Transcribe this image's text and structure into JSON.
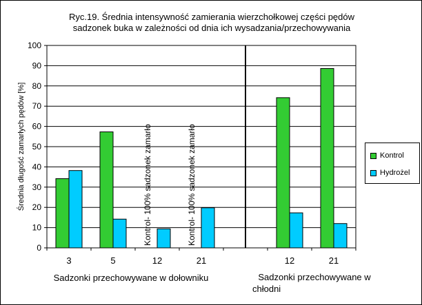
{
  "chart_data": {
    "type": "bar",
    "title_line1": "Ryc.19. Średnia intensywność zamierania wierzchołkowej części pędów",
    "title_line2": "sadzonek buka w zależności od dnia ich wysadzania/przechowywania",
    "ylabel": "Średnia długość zamarłych pędów [%]",
    "ylim": [
      0,
      100
    ],
    "yticks": [
      "0",
      "10",
      "20",
      "30",
      "40",
      "50",
      "60",
      "70",
      "80",
      "90",
      "100"
    ],
    "grid": true,
    "legend_position": "right",
    "categories": [
      "3",
      "5",
      "12",
      "21",
      "",
      "12",
      "21"
    ],
    "series": [
      {
        "name": "Kontrol",
        "color": "#33cc33",
        "values": [
          34.2,
          57.3,
          null,
          null,
          null,
          74.2,
          88.6
        ]
      },
      {
        "name": "Hydrożel",
        "color": "#00ccff",
        "values": [
          38.2,
          14.2,
          9.4,
          19.8,
          null,
          17.3,
          12.0
        ]
      }
    ],
    "annotations": [
      {
        "category": "12",
        "text": "Kontrol- 100% sadzonek  zamarło"
      },
      {
        "category": "21",
        "text": "Kontrol- 100% sadzonek zamarło"
      }
    ],
    "group_labels": [
      {
        "line1": "Sadzonki przechowywane w dołowniku",
        "line2": ""
      },
      {
        "line1": "Sadzonki przechowywane w",
        "line2": "chłodni"
      }
    ]
  }
}
